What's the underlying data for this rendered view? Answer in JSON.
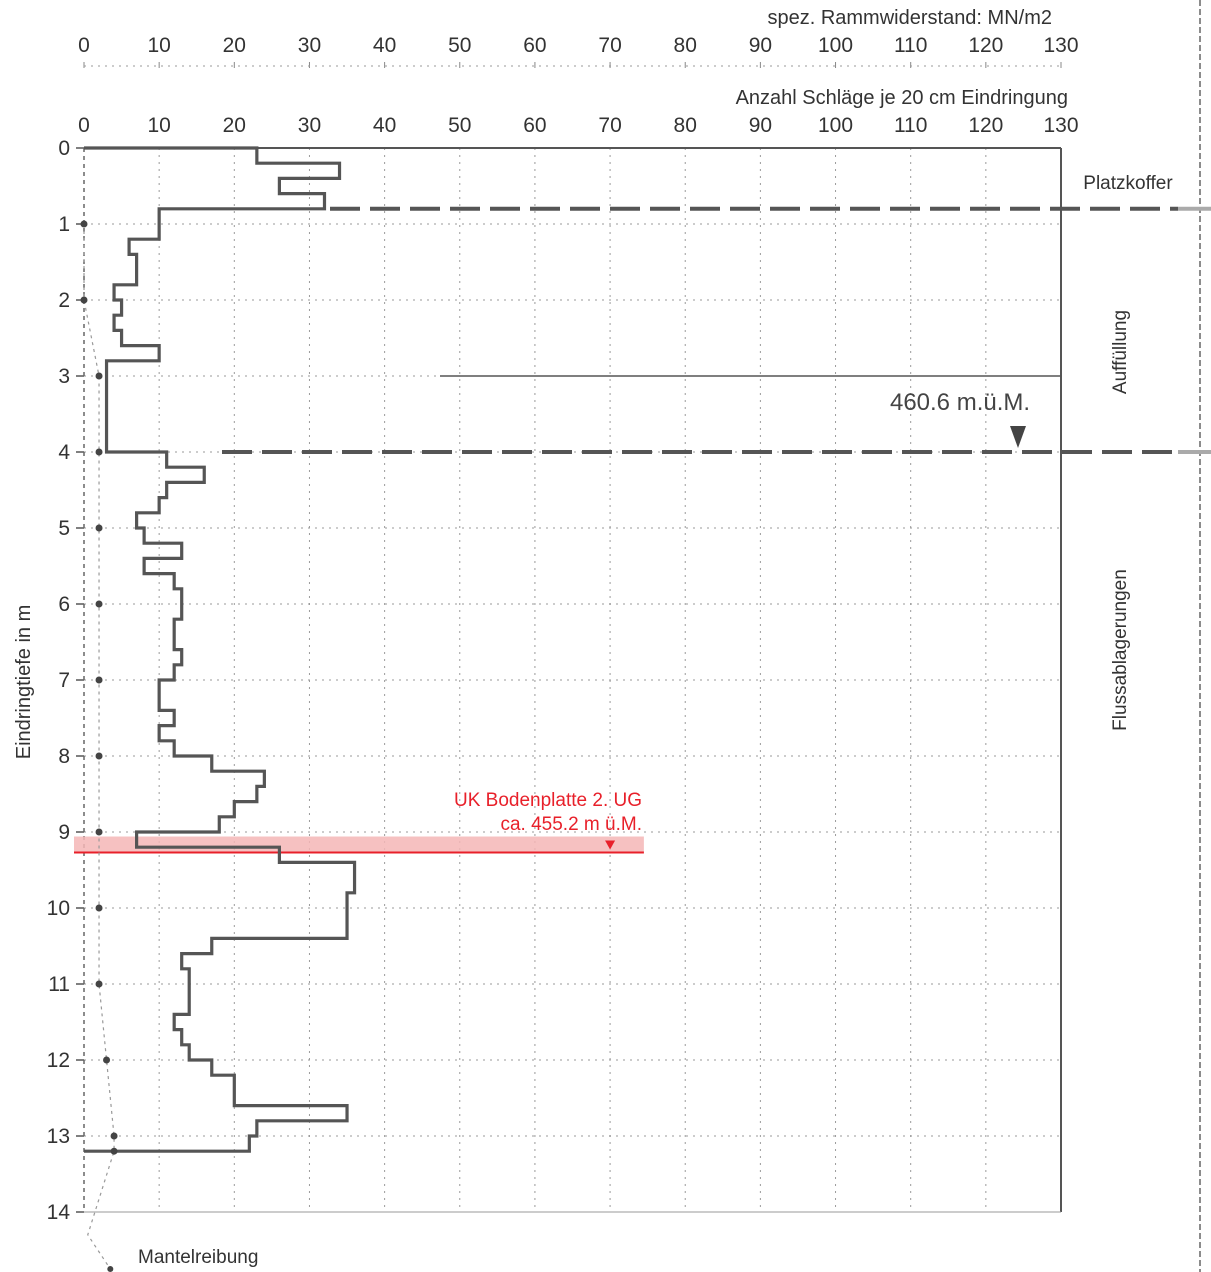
{
  "chart_data": {
    "type": "line",
    "ylabel": "Eindringtiefe in m",
    "x_top_label": "spez. Rammwiderstand: MN/m2",
    "x_label": "Anzahl Schläge je 20 cm Eindringung",
    "xlim": [
      0,
      130
    ],
    "ylim": [
      0,
      14
    ],
    "x_ticks": [
      "0",
      "10",
      "20",
      "30",
      "40",
      "50",
      "60",
      "70",
      "80",
      "90",
      "100",
      "110",
      "120",
      "130"
    ],
    "y_ticks": [
      "0",
      "1",
      "2",
      "3",
      "4",
      "5",
      "6",
      "7",
      "8",
      "9",
      "10",
      "11",
      "12",
      "13",
      "14"
    ],
    "grid": true,
    "series": [
      {
        "type": "step",
        "depth_from": [
          0.0,
          0.2,
          0.4,
          0.6,
          0.8,
          1.0,
          1.2,
          1.4,
          1.6,
          1.8,
          2.0,
          2.2,
          2.4,
          2.6,
          2.8,
          3.0,
          3.2,
          3.4,
          3.6,
          3.8,
          4.0,
          4.2,
          4.4,
          4.6,
          4.8,
          5.0,
          5.2,
          5.4,
          5.6,
          5.8,
          6.0,
          6.2,
          6.4,
          6.6,
          6.8,
          7.0,
          7.2,
          7.4,
          7.6,
          7.8,
          8.0,
          8.2,
          8.4,
          8.6,
          8.8,
          9.0,
          9.2,
          9.4,
          9.6,
          9.8,
          10.0,
          10.2,
          10.4,
          10.6,
          10.8,
          11.0,
          11.2,
          11.4,
          11.6,
          11.8,
          12.0,
          12.2,
          12.4,
          12.6,
          12.8,
          13.0
        ],
        "blows": [
          23,
          34,
          26,
          32,
          10,
          10,
          6,
          7,
          7,
          4,
          5,
          4,
          5,
          10,
          3,
          3,
          3,
          3,
          3,
          3,
          11,
          16,
          11,
          10,
          7,
          8,
          13,
          8,
          12,
          13,
          13,
          12,
          12,
          13,
          12,
          10,
          10,
          12,
          10,
          12,
          17,
          24,
          23,
          20,
          18,
          7,
          26,
          36,
          36,
          35,
          35,
          35,
          17,
          13,
          14,
          14,
          14,
          12,
          13,
          14,
          17,
          20,
          20,
          35,
          23,
          22
        ],
        "depth_end": 13.2
      }
    ],
    "mantelreibung": {
      "label": "Mantelreibung",
      "depths": [
        1.0,
        2.0,
        3.0,
        4.0,
        5.0,
        6.0,
        7.0,
        8.0,
        9.0,
        10.0,
        11.0,
        12.0,
        13.0,
        13.2
      ],
      "values": [
        0,
        0,
        2,
        2,
        2,
        2,
        2,
        2,
        2,
        2,
        2,
        3,
        4,
        4
      ]
    },
    "layers": [
      {
        "name": "Platzkoffer",
        "top": 0.0,
        "bottom": 0.8
      },
      {
        "name": "Auffüllung",
        "top": 0.8,
        "bottom": 4.0
      },
      {
        "name": "Flussablagerungen",
        "top": 4.0,
        "bottom": 14.0
      }
    ],
    "boundaries": [
      0.8,
      4.0
    ],
    "annotations": {
      "water_level": "460.6 m.ü.M.",
      "uk_line1": "UK Bodenplatte 2. UG",
      "uk_line2": "ca. 455.2 m ü.M.",
      "uk_depth": 9.27,
      "uk_x": 70
    },
    "colors": {
      "profile": "#555555",
      "highlight": "#e8202a",
      "highlight_band": "#f4b6b6"
    }
  }
}
